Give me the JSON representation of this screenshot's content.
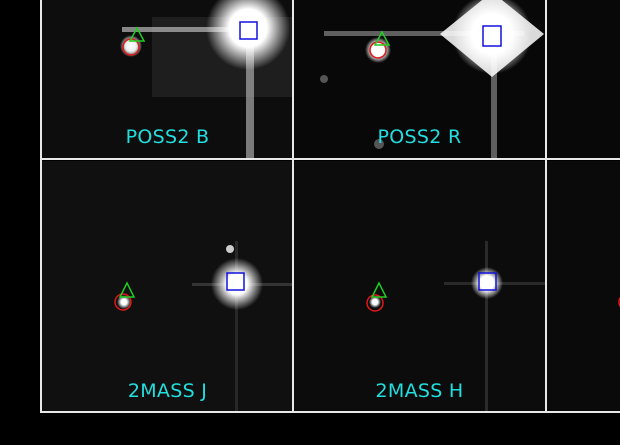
{
  "colors": {
    "label": "#22dede",
    "circle_marker": "#e01818",
    "triangle_marker": "#22cc22",
    "square_marker": "#1010dd",
    "grid_lines": "#e8e8e8"
  },
  "panels": [
    {
      "label": "POSS2 B"
    },
    {
      "label": "POSS2 R"
    },
    {
      "label": "2MASS J"
    },
    {
      "label": "2MASS H"
    }
  ]
}
